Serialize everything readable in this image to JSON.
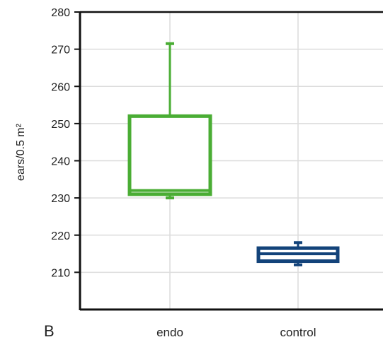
{
  "chart_data": {
    "type": "box",
    "panel_label": "B",
    "ylabel": "ears/0.5 m²",
    "ylim": [
      200,
      280
    ],
    "yticks": [
      210,
      220,
      230,
      240,
      250,
      260,
      270,
      280
    ],
    "grid": true,
    "categories": [
      "endo",
      "control"
    ],
    "boxes": [
      {
        "category": "endo",
        "min": 230,
        "q1": 231,
        "median": 232,
        "q3": 252,
        "max": 271.5,
        "color": "#4aad34"
      },
      {
        "category": "control",
        "min": 212,
        "q1": 213,
        "median": 215,
        "q3": 216.5,
        "max": 218,
        "color": "#13437a"
      }
    ]
  }
}
